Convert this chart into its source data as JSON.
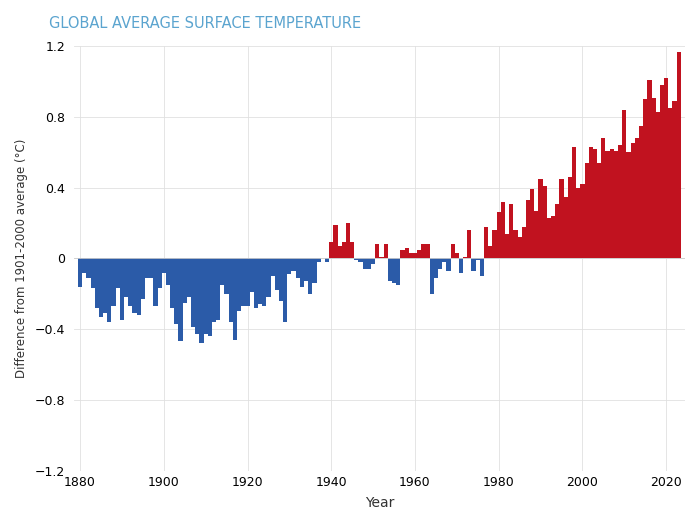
{
  "title": "GLOBAL AVERAGE SURFACE TEMPERATURE",
  "title_color": "#5BA4CF",
  "xlabel": "Year",
  "ylabel": "Difference from 1901-2000 average (°C)",
  "background_color": "#ffffff",
  "plot_bg_color": "#ffffff",
  "ylim": [
    -1.2,
    1.2
  ],
  "xlim": [
    1878.5,
    2024.5
  ],
  "yticks": [
    -1.2,
    -0.8,
    -0.4,
    0,
    0.4,
    0.8,
    1.2
  ],
  "xticks": [
    1880,
    1900,
    1920,
    1940,
    1960,
    1980,
    2000,
    2020
  ],
  "color_positive": "#C1121F",
  "color_negative": "#2B5BA8",
  "years": [
    1880,
    1881,
    1882,
    1883,
    1884,
    1885,
    1886,
    1887,
    1888,
    1889,
    1890,
    1891,
    1892,
    1893,
    1894,
    1895,
    1896,
    1897,
    1898,
    1899,
    1900,
    1901,
    1902,
    1903,
    1904,
    1905,
    1906,
    1907,
    1908,
    1909,
    1910,
    1911,
    1912,
    1913,
    1914,
    1915,
    1916,
    1917,
    1918,
    1919,
    1920,
    1921,
    1922,
    1923,
    1924,
    1925,
    1926,
    1927,
    1928,
    1929,
    1930,
    1931,
    1932,
    1933,
    1934,
    1935,
    1936,
    1937,
    1938,
    1939,
    1940,
    1941,
    1942,
    1943,
    1944,
    1945,
    1946,
    1947,
    1948,
    1949,
    1950,
    1951,
    1952,
    1953,
    1954,
    1955,
    1956,
    1957,
    1958,
    1959,
    1960,
    1961,
    1962,
    1963,
    1964,
    1965,
    1966,
    1967,
    1968,
    1969,
    1970,
    1971,
    1972,
    1973,
    1974,
    1975,
    1976,
    1977,
    1978,
    1979,
    1980,
    1981,
    1982,
    1983,
    1984,
    1985,
    1986,
    1987,
    1988,
    1989,
    1990,
    1991,
    1992,
    1993,
    1994,
    1995,
    1996,
    1997,
    1998,
    1999,
    2000,
    2001,
    2002,
    2003,
    2004,
    2005,
    2006,
    2007,
    2008,
    2009,
    2010,
    2011,
    2012,
    2013,
    2014,
    2015,
    2016,
    2017,
    2018,
    2019,
    2020,
    2021,
    2022,
    2023
  ],
  "anomalies": [
    -0.16,
    -0.08,
    -0.11,
    -0.17,
    -0.28,
    -0.33,
    -0.31,
    -0.36,
    -0.27,
    -0.17,
    -0.35,
    -0.22,
    -0.27,
    -0.31,
    -0.32,
    -0.23,
    -0.11,
    -0.11,
    -0.27,
    -0.17,
    -0.08,
    -0.15,
    -0.28,
    -0.37,
    -0.47,
    -0.25,
    -0.22,
    -0.39,
    -0.43,
    -0.48,
    -0.43,
    -0.44,
    -0.36,
    -0.35,
    -0.15,
    -0.2,
    -0.36,
    -0.46,
    -0.3,
    -0.27,
    -0.27,
    -0.19,
    -0.28,
    -0.26,
    -0.27,
    -0.22,
    -0.1,
    -0.18,
    -0.24,
    -0.36,
    -0.09,
    -0.07,
    -0.11,
    -0.16,
    -0.13,
    -0.2,
    -0.14,
    -0.02,
    -0.0,
    -0.02,
    0.09,
    0.19,
    0.07,
    0.09,
    0.2,
    0.09,
    -0.01,
    -0.02,
    -0.06,
    -0.06,
    -0.03,
    0.08,
    0.01,
    0.08,
    -0.13,
    -0.14,
    -0.15,
    0.05,
    0.06,
    0.03,
    0.03,
    0.05,
    0.08,
    0.08,
    -0.2,
    -0.11,
    -0.06,
    -0.02,
    -0.07,
    0.08,
    0.03,
    -0.08,
    0.01,
    0.16,
    -0.07,
    -0.01,
    -0.1,
    0.18,
    0.07,
    0.16,
    0.26,
    0.32,
    0.14,
    0.31,
    0.16,
    0.12,
    0.18,
    0.33,
    0.39,
    0.27,
    0.45,
    0.41,
    0.23,
    0.24,
    0.31,
    0.45,
    0.35,
    0.46,
    0.63,
    0.4,
    0.42,
    0.54,
    0.63,
    0.62,
    0.54,
    0.68,
    0.61,
    0.62,
    0.61,
    0.64,
    0.84,
    0.6,
    0.65,
    0.68,
    0.75,
    0.9,
    1.01,
    0.91,
    0.83,
    0.98,
    1.02,
    0.85,
    0.89,
    1.17
  ]
}
